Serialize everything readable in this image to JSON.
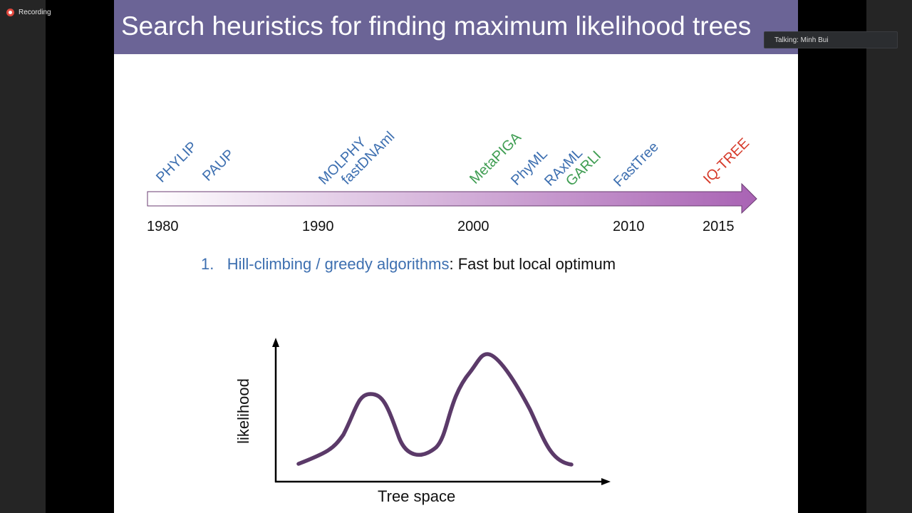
{
  "recording": {
    "label": "Recording"
  },
  "talking": {
    "label": "Talking: Minh Bui"
  },
  "slide": {
    "title": "Search heuristics for finding maximum likelihood trees",
    "tools": [
      {
        "name": "PHYLIP",
        "color": "#3d6fb0"
      },
      {
        "name": "PAUP",
        "color": "#3d6fb0"
      },
      {
        "name": "MOLPHY",
        "color": "#3d6fb0"
      },
      {
        "name": "fastDNAml",
        "color": "#3d6fb0"
      },
      {
        "name": "MetaPIGA",
        "color": "#3f9d52"
      },
      {
        "name": "PhyML",
        "color": "#3d6fb0"
      },
      {
        "name": "RAxML",
        "color": "#3d6fb0"
      },
      {
        "name": "GARLI",
        "color": "#3f9d52"
      },
      {
        "name": "FastTree",
        "color": "#3d6fb0"
      },
      {
        "name": "IQ-TREE",
        "color": "#d63a2a"
      }
    ],
    "years": [
      "1980",
      "1990",
      "2000",
      "2010",
      "2015"
    ],
    "point": {
      "number": "1.",
      "highlight": "Hill-climbing / greedy algorithms",
      "rest": ": Fast but local optimum"
    },
    "plot": {
      "ylabel": "likelihood",
      "xlabel": "Tree space"
    }
  }
}
